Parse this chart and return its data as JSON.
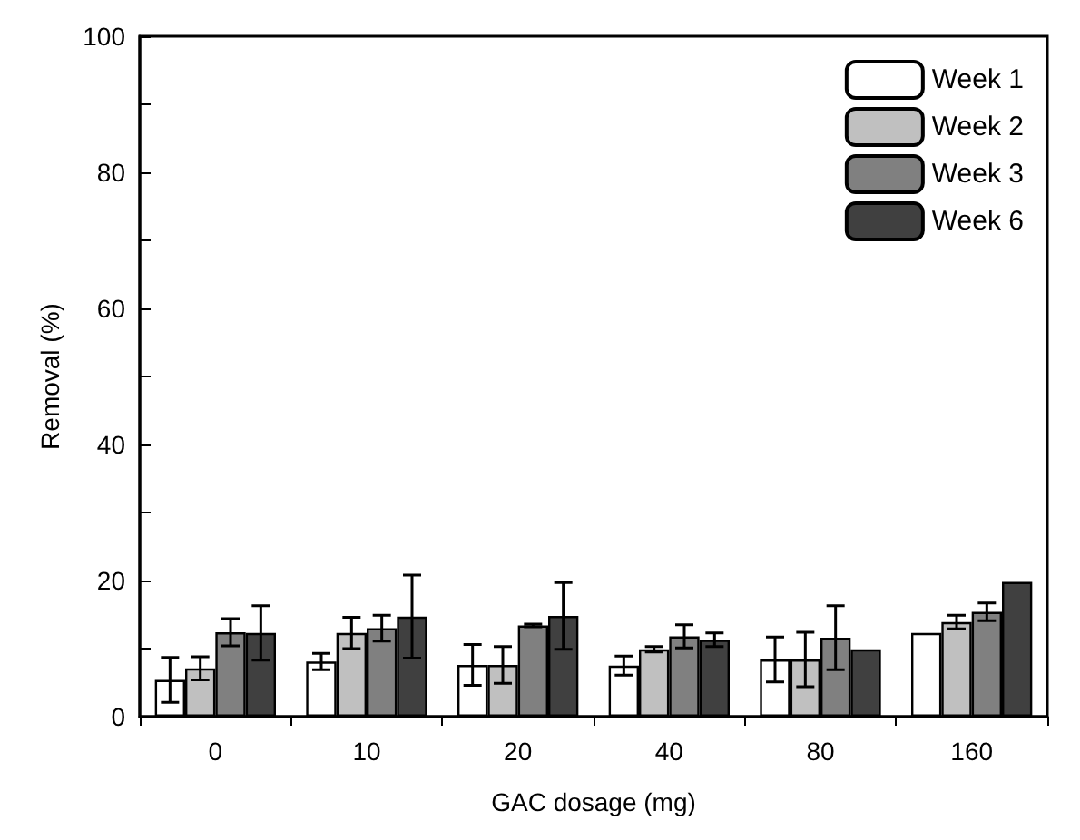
{
  "chart_data": {
    "type": "bar",
    "xlabel": "GAC dosage (mg)",
    "ylabel": "Removal (%)",
    "categories": [
      "0",
      "10",
      "20",
      "40",
      "80",
      "160"
    ],
    "series": [
      {
        "name": "Week 1",
        "color": "#ffffff",
        "values": [
          5.4,
          8.1,
          7.6,
          7.5,
          8.4,
          12.3
        ],
        "errors": [
          3.3,
          1.2,
          3,
          1.4,
          3.3,
          null
        ]
      },
      {
        "name": "Week 2",
        "color": "#c0c0c0",
        "values": [
          7.1,
          12.3,
          7.6,
          9.9,
          8.4,
          13.9
        ],
        "errors": [
          1.7,
          2.3,
          2.7,
          0.4,
          4,
          1
        ]
      },
      {
        "name": "Week 3",
        "color": "#808080",
        "values": [
          12.4,
          13,
          13.4,
          11.8,
          11.6,
          15.4
        ],
        "errors": [
          2,
          1.9,
          0.2,
          1.7,
          4.7,
          1.3
        ]
      },
      {
        "name": "Week 6",
        "color": "#404040",
        "values": [
          12.3,
          14.7,
          14.8,
          11.3,
          9.9,
          19.8
        ],
        "errors": [
          4,
          6.1,
          4.9,
          1,
          null,
          null
        ]
      }
    ],
    "ylim": [
      0,
      100
    ],
    "yticks": [
      0,
      {
        "value": 10,
        "label": null
      },
      20,
      {
        "value": 30,
        "label": null
      },
      40,
      {
        "value": 50,
        "label": null
      },
      60,
      {
        "value": 70,
        "label": null
      },
      80,
      {
        "value": 90,
        "label": null
      },
      100
    ],
    "grid": false,
    "legend": "top right"
  }
}
